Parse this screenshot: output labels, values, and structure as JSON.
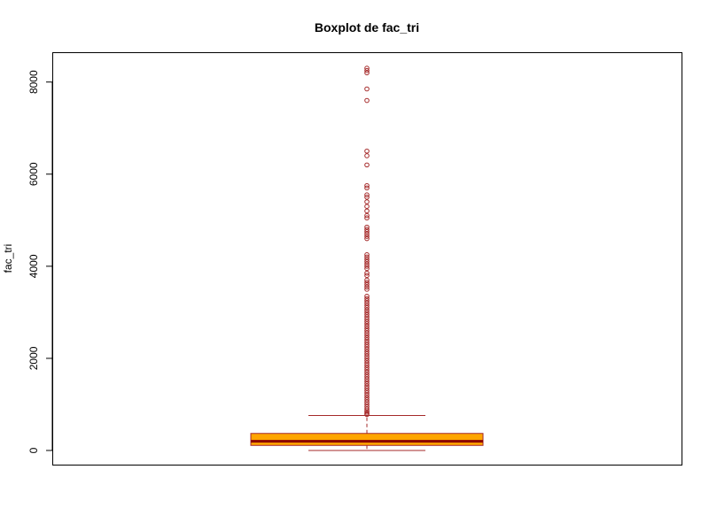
{
  "chart_data": {
    "type": "boxplot",
    "title": "Boxplot de fac_tri",
    "xlabel": "",
    "ylabel": "fac_tri",
    "ylim": [
      -300,
      8650
    ],
    "yticks": [
      0,
      2000,
      4000,
      6000,
      8000
    ],
    "yticklabels": [
      "0",
      "2000",
      "4000",
      "6000",
      "8000"
    ],
    "grid": false,
    "box": {
      "min": 0,
      "q1": 110,
      "median": 200,
      "q3": 370,
      "whisker_low": 0,
      "whisker_high": 760
    },
    "outliers": [
      780,
      800,
      830,
      860,
      900,
      950,
      1000,
      1050,
      1100,
      1150,
      1200,
      1250,
      1300,
      1350,
      1400,
      1450,
      1500,
      1550,
      1600,
      1650,
      1700,
      1750,
      1800,
      1850,
      1900,
      1950,
      2000,
      2050,
      2100,
      2150,
      2200,
      2250,
      2300,
      2350,
      2400,
      2450,
      2500,
      2550,
      2600,
      2650,
      2700,
      2750,
      2800,
      2850,
      2900,
      2950,
      3000,
      3050,
      3100,
      3150,
      3200,
      3250,
      3300,
      3350,
      3500,
      3550,
      3600,
      3650,
      3700,
      3800,
      3850,
      3950,
      4000,
      4050,
      4100,
      4150,
      4200,
      4250,
      4600,
      4650,
      4700,
      4750,
      4800,
      4850,
      5050,
      5100,
      5200,
      5300,
      5400,
      5500,
      5550,
      5700,
      5750,
      6200,
      6400,
      6500,
      7600,
      7850,
      8200,
      8250,
      8300
    ],
    "colors": {
      "box_fill": "#FFA500",
      "box_border": "#A52A2A",
      "median": "#8B0000",
      "whisker": "#A52A2A",
      "outlier": "#A52A2A"
    }
  }
}
